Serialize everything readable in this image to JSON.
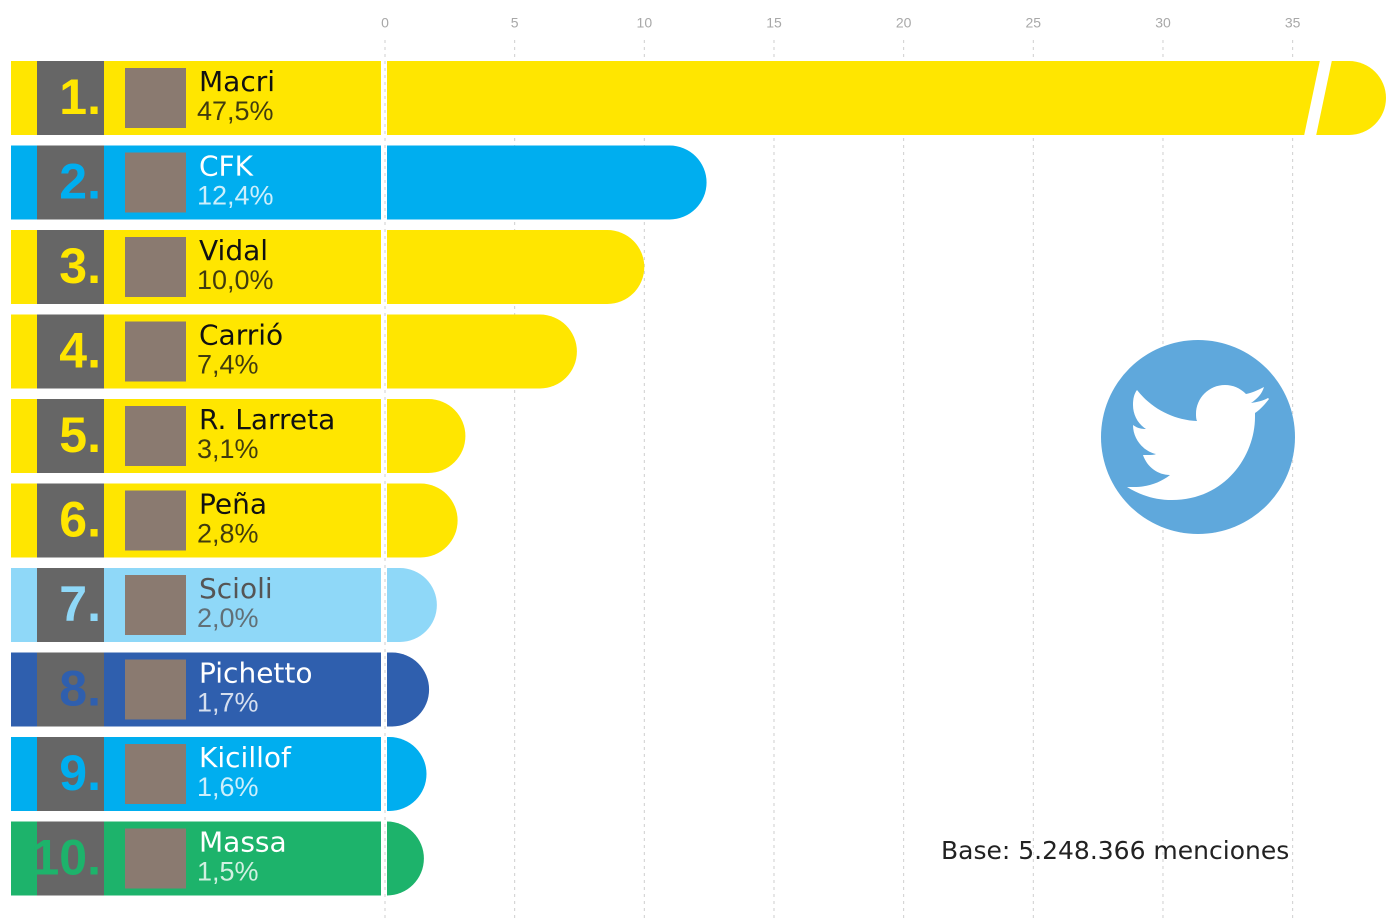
{
  "chart_data": {
    "type": "bar",
    "ranks": [
      "1.",
      "2.",
      "3.",
      "4.",
      "5.",
      "6.",
      "7.",
      "8.",
      "9.",
      "10."
    ],
    "categories": [
      "Macri",
      "CFK",
      "Vidal",
      "Carrió",
      "R. Larreta",
      "Peña",
      "Scioli",
      "Pichetto",
      "Kicillof",
      "Massa"
    ],
    "values": [
      47.5,
      12.4,
      10.0,
      7.4,
      3.1,
      2.8,
      2.0,
      1.7,
      1.6,
      1.5
    ],
    "value_labels": [
      "47,5%",
      "12,4%",
      "10,0%",
      "7,4%",
      "3,1%",
      "2,8%",
      "2,0%",
      "1,7%",
      "1,6%",
      "1,5%"
    ],
    "colors": [
      "#ffe600",
      "#00aeef",
      "#ffe600",
      "#ffe600",
      "#ffe600",
      "#ffe600",
      "#8fd8f8",
      "#2f5fae",
      "#00aeef",
      "#1db36b"
    ],
    "label_colors": [
      "#111111",
      "#ffffff",
      "#111111",
      "#111111",
      "#111111",
      "#111111",
      "#555555",
      "#ffffff",
      "#ffffff",
      "#ffffff"
    ],
    "xlim": [
      0,
      38.6
    ],
    "xticks": [
      0,
      5,
      10,
      15,
      20,
      25,
      30,
      35
    ],
    "grid": true,
    "axis_break": true,
    "note": "Base: 5.248.366 menciones"
  }
}
